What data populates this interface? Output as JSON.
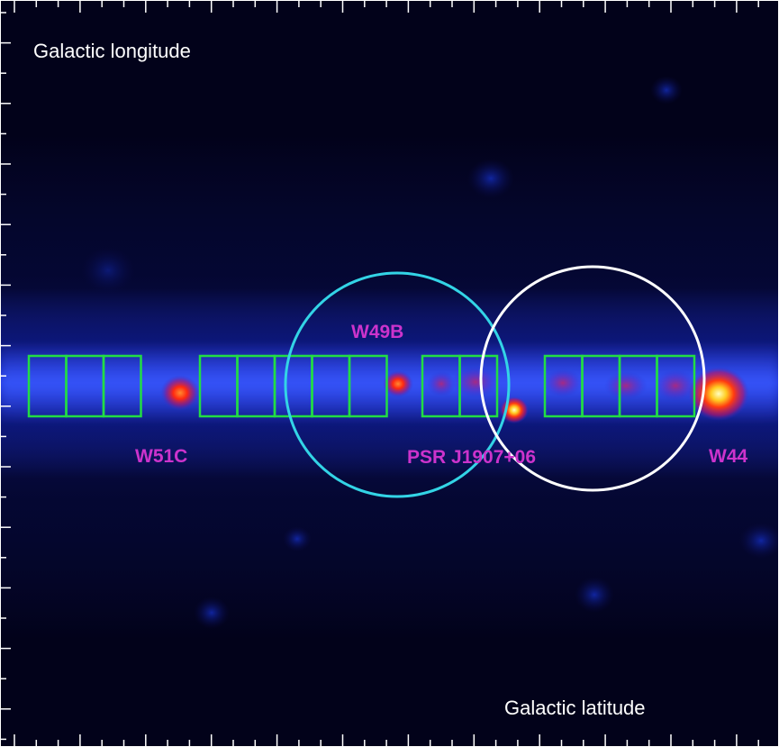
{
  "figure": {
    "top_left_label": "Galactic longitude",
    "bottom_right_label": "Galactic latitude"
  },
  "sources": [
    {
      "id": "w51c",
      "label": "W51C"
    },
    {
      "id": "w49b",
      "label": "W49B"
    },
    {
      "id": "psr",
      "label": "PSR J1907+06"
    },
    {
      "id": "w44",
      "label": "W44"
    }
  ],
  "colors": {
    "background": "#02021a",
    "plane_emission": "#1f32d6",
    "source_label": "#cc33cc",
    "box_outline": "#22dd44",
    "circle_cyan": "#33d4e6",
    "circle_white": "#ffffff",
    "axis_label": "#ffffff"
  },
  "regions": {
    "box_groups": [
      3,
      5,
      2,
      4
    ],
    "circles": [
      "cyan",
      "white"
    ]
  }
}
